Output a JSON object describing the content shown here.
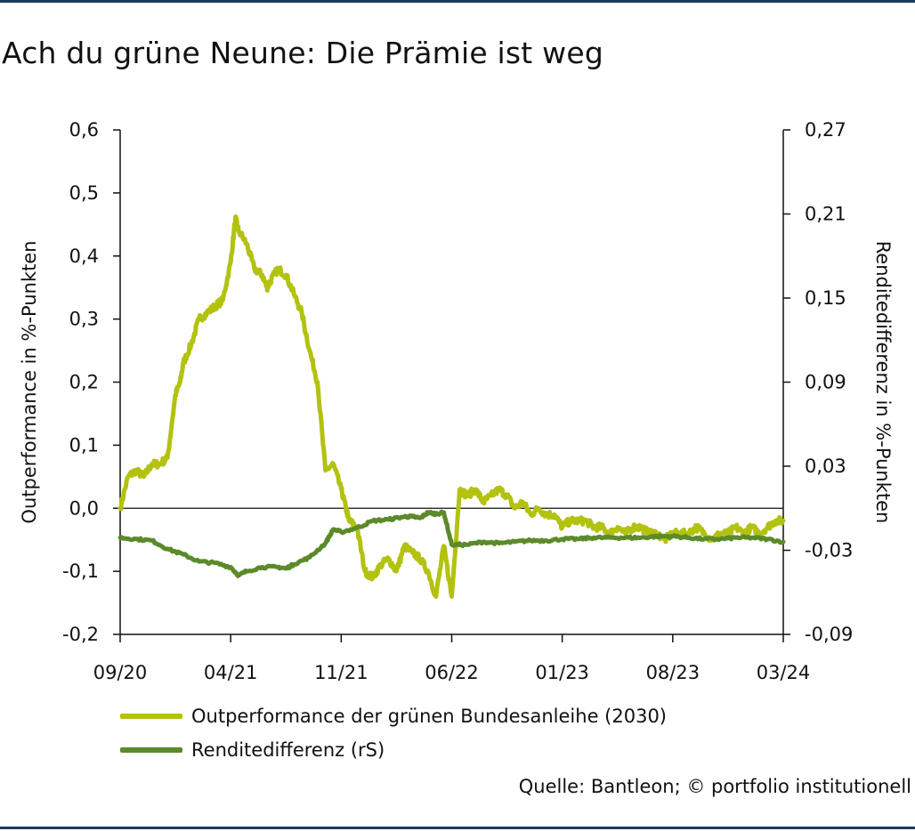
{
  "title": "Ach du grüne Neune: Die Prämie ist weg",
  "source": "Quelle: Bantleon; © portfolio institutionell",
  "colors": {
    "outperformance": "#b3c20f",
    "renditedifferenz": "#5c8a2b",
    "frame": "#1c3a5e",
    "axis": "#111111"
  },
  "chart_data": {
    "type": "line",
    "ylabel": "Outperformance in %-Punkten",
    "y2label": "Renditedifferenz in %-Punkten",
    "ylim": [
      -0.2,
      0.6
    ],
    "y2lim": [
      -0.09,
      0.27
    ],
    "y_ticks": [
      "0,6",
      "0,5",
      "0,4",
      "0,3",
      "0,2",
      "0,1",
      "0,0",
      "-0,1",
      "-0,2"
    ],
    "y2_ticks": [
      "0,27",
      "0,21",
      "0,15",
      "0,09",
      "0,03",
      "-0,03",
      "-0,09"
    ],
    "x_ticks": [
      "09/20",
      "04/21",
      "11/21",
      "06/22",
      "01/23",
      "08/23",
      "03/24"
    ],
    "grid": false,
    "legend_position": "bottom",
    "series": [
      {
        "name": "Outperformance der grünen Bundesanleihe (2030)",
        "axis": "left",
        "x": [
          0,
          0.5,
          1,
          1.5,
          2,
          2.5,
          3,
          3.5,
          3.8,
          4,
          4.5,
          5,
          5.5,
          6,
          6.5,
          7,
          7.3,
          7.5,
          8,
          8.5,
          9,
          9.3,
          9.5,
          10,
          10.5,
          11,
          11.5,
          12,
          12.5,
          13,
          13.5,
          14,
          14.3,
          14.5,
          15,
          15.5,
          16,
          16.5,
          17,
          17.5,
          18,
          18.5,
          19,
          19.5,
          20,
          20.5,
          21,
          21.5,
          22,
          22.5,
          23,
          23.5,
          24,
          24.5,
          25,
          25.5,
          26,
          26.5,
          27,
          27.5,
          28,
          28.5,
          29,
          29.5,
          30,
          30.5,
          31,
          31.5,
          32,
          32.5,
          33,
          33.5,
          34,
          34.5,
          35,
          35.5,
          36,
          36.5,
          37,
          37.5,
          38,
          38.5,
          39,
          39.5,
          40,
          40.5,
          41,
          41.5,
          42
        ],
        "values": [
          0.0,
          0.05,
          0.06,
          0.05,
          0.07,
          0.07,
          0.08,
          0.18,
          0.2,
          0.23,
          0.26,
          0.3,
          0.31,
          0.32,
          0.33,
          0.39,
          0.46,
          0.44,
          0.42,
          0.38,
          0.37,
          0.35,
          0.36,
          0.38,
          0.37,
          0.34,
          0.31,
          0.25,
          0.2,
          0.06,
          0.07,
          0.03,
          0.0,
          -0.02,
          -0.03,
          -0.1,
          -0.11,
          -0.09,
          -0.08,
          -0.1,
          -0.06,
          -0.07,
          -0.08,
          -0.1,
          -0.14,
          -0.06,
          -0.14,
          0.03,
          0.02,
          0.03,
          0.01,
          0.02,
          0.03,
          0.02,
          0.0,
          0.01,
          -0.01,
          0.0,
          -0.01,
          -0.01,
          -0.03,
          -0.02,
          -0.02,
          -0.02,
          -0.03,
          -0.03,
          -0.04,
          -0.03,
          -0.04,
          -0.03,
          -0.03,
          -0.04,
          -0.04,
          -0.05,
          -0.04,
          -0.04,
          -0.04,
          -0.03,
          -0.04,
          -0.05,
          -0.04,
          -0.04,
          -0.03,
          -0.04,
          -0.03,
          -0.04,
          -0.03,
          -0.02,
          -0.02
        ]
      },
      {
        "name": "Renditedifferenz (rS)",
        "axis": "right",
        "x": [
          0,
          1,
          2,
          3,
          4,
          5,
          6,
          7,
          7.5,
          8,
          9,
          10,
          10.5,
          11,
          12,
          13,
          13.5,
          14,
          15,
          16,
          17,
          18,
          18.5,
          19,
          19.5,
          20,
          20.5,
          21,
          22,
          23,
          24,
          25,
          26,
          27,
          28,
          29,
          30,
          31,
          32,
          33,
          34,
          35,
          36,
          37,
          38,
          39,
          40,
          41,
          42
        ],
        "values": [
          -0.021,
          -0.022,
          -0.023,
          -0.029,
          -0.033,
          -0.038,
          -0.039,
          -0.042,
          -0.048,
          -0.045,
          -0.042,
          -0.042,
          -0.043,
          -0.04,
          -0.035,
          -0.025,
          -0.015,
          -0.017,
          -0.014,
          -0.009,
          -0.008,
          -0.006,
          -0.006,
          -0.007,
          -0.003,
          -0.004,
          -0.003,
          -0.026,
          -0.026,
          -0.024,
          -0.025,
          -0.024,
          -0.023,
          -0.023,
          -0.022,
          -0.022,
          -0.021,
          -0.021,
          -0.021,
          -0.021,
          -0.02,
          -0.02,
          -0.021,
          -0.022,
          -0.022,
          -0.021,
          -0.021,
          -0.022,
          -0.024
        ]
      }
    ]
  }
}
